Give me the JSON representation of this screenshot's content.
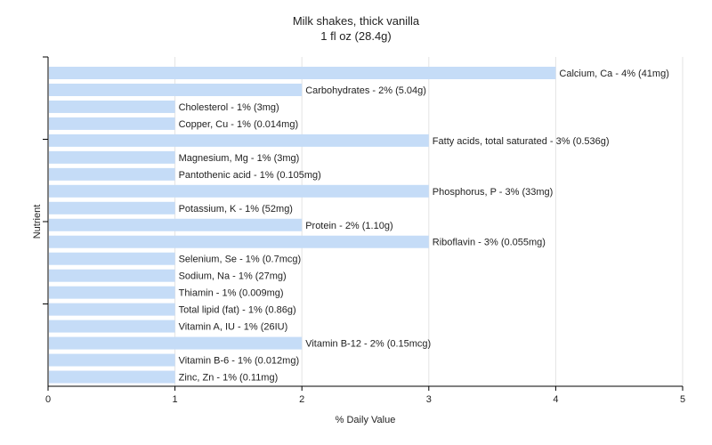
{
  "chart_data": {
    "type": "bar",
    "orientation": "horizontal",
    "title": "Milk shakes, thick vanilla",
    "subtitle": "1 fl oz (28.4g)",
    "xlabel": "% Daily Value",
    "ylabel": "Nutrient",
    "xlim": [
      0,
      5
    ],
    "xticks": [
      "0",
      "1",
      "2",
      "3",
      "4",
      "5"
    ],
    "grid": true,
    "bar_color": "#c5dcf7",
    "categories": [
      "Calcium, Ca",
      "Carbohydrates",
      "Cholesterol",
      "Copper, Cu",
      "Fatty acids, total saturated",
      "Magnesium, Mg",
      "Pantothenic acid",
      "Phosphorus, P",
      "Potassium, K",
      "Protein",
      "Riboflavin",
      "Selenium, Se",
      "Sodium, Na",
      "Thiamin",
      "Total lipid (fat)",
      "Vitamin A, IU",
      "Vitamin B-12",
      "Vitamin B-6",
      "Zinc, Zn"
    ],
    "values": [
      4,
      2,
      1,
      1,
      3,
      1,
      1,
      3,
      1,
      2,
      3,
      1,
      1,
      1,
      1,
      1,
      2,
      1,
      1
    ],
    "data_labels": [
      "Calcium, Ca - 4% (41mg)",
      "Carbohydrates - 2% (5.04g)",
      "Cholesterol - 1% (3mg)",
      "Copper, Cu - 1% (0.014mg)",
      "Fatty acids, total saturated - 3% (0.536g)",
      "Magnesium, Mg - 1% (3mg)",
      "Pantothenic acid - 1% (0.105mg)",
      "Phosphorus, P - 3% (33mg)",
      "Potassium, K - 1% (52mg)",
      "Protein - 2% (1.10g)",
      "Riboflavin - 3% (0.055mg)",
      "Selenium, Se - 1% (0.7mcg)",
      "Sodium, Na - 1% (27mg)",
      "Thiamin - 1% (0.009mg)",
      "Total lipid (fat) - 1% (0.86g)",
      "Vitamin A, IU - 1% (26IU)",
      "Vitamin B-12 - 2% (0.15mcg)",
      "Vitamin B-6 - 1% (0.012mg)",
      "Zinc, Zn - 1% (0.11mg)"
    ]
  }
}
